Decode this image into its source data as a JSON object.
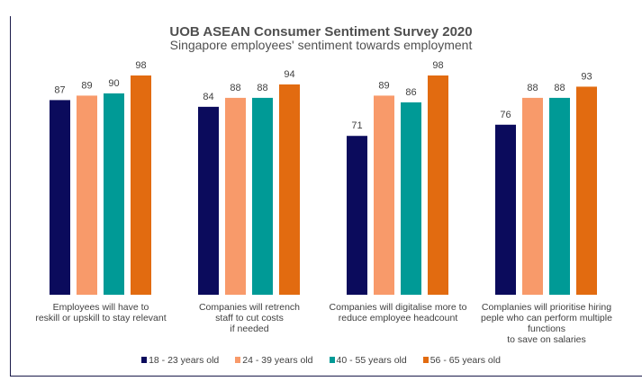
{
  "chart_data": {
    "type": "bar",
    "title": "UOB ASEAN Consumer Sentiment Survey 2020",
    "subtitle": "Singapore employees' sentiment towards employment",
    "categories": [
      "Employees will have to\nreskill or upskill to stay relevant",
      "Companies will retrench\nstaff to cut costs\nif needed",
      "Companies will digitalise more to\nreduce employee headcount",
      "Complanies will prioritise hiring\npeple who can perform multiple\nfunctions\nto save on salaries"
    ],
    "series": [
      {
        "name": "18 - 23 years old",
        "color": "#0b0b5c",
        "values": [
          87,
          84,
          71,
          76
        ]
      },
      {
        "name": "24 - 39 years old",
        "color": "#f89a6a",
        "values": [
          89,
          88,
          89,
          88
        ]
      },
      {
        "name": "40 - 55 years old",
        "color": "#009a96",
        "values": [
          90,
          88,
          86,
          88
        ]
      },
      {
        "name": "56 - 65 years old",
        "color": "#e26b10",
        "values": [
          98,
          94,
          98,
          93
        ]
      }
    ],
    "ylim": [
      0,
      98
    ],
    "grid": false,
    "data_labels": true,
    "legend_position": "bottom"
  }
}
